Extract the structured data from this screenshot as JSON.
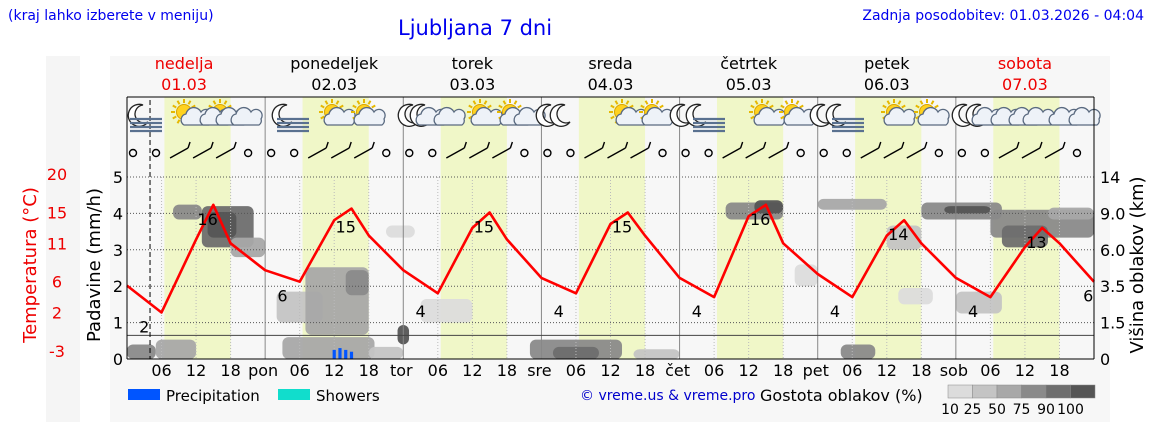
{
  "header": {
    "hint": "(kraj lahko izberete v meniju)",
    "title": "Ljubljana 7 dni",
    "updated": "Zadnja posodobitev: 01.03.2026 - 04:04",
    "credit": "© vreme.us & vreme.pro"
  },
  "days": [
    {
      "name": "nedelja",
      "date": "01.03",
      "weekend": true
    },
    {
      "name": "ponedeljek",
      "date": "02.03",
      "weekend": false
    },
    {
      "name": "torek",
      "date": "03.03",
      "weekend": false
    },
    {
      "name": "sreda",
      "date": "04.03",
      "weekend": false
    },
    {
      "name": "četrtek",
      "date": "05.03",
      "weekend": false
    },
    {
      "name": "petek",
      "date": "06.03",
      "weekend": false
    },
    {
      "name": "sobota",
      "date": "07.03",
      "weekend": true
    }
  ],
  "chart_data": {
    "type": "line",
    "start_time": "01.03 00:00",
    "hour_ticks": [
      "06",
      "12",
      "18"
    ],
    "day_ticks": [
      "pon",
      "tor",
      "sre",
      "čet",
      "pet",
      "sob"
    ],
    "temperature": {
      "axis_label": "Temperatura (°C)",
      "ticks": [
        20,
        15,
        11,
        6,
        2,
        -3
      ],
      "color": "#ff0000",
      "hours": [
        0,
        6,
        12,
        15,
        18,
        24,
        30,
        36,
        39,
        42,
        48,
        54,
        60,
        63,
        66,
        72,
        78,
        84,
        87,
        90,
        96,
        102,
        108,
        111,
        114,
        120,
        126,
        132,
        135,
        138,
        144,
        150,
        156,
        159,
        162,
        168
      ],
      "values": [
        5.5,
        2.0,
        11.5,
        16.0,
        11.0,
        7.5,
        6.0,
        14.0,
        15.5,
        12.0,
        7.5,
        4.5,
        13.0,
        15.0,
        11.5,
        6.5,
        4.5,
        13.5,
        15.0,
        12.0,
        6.5,
        4.0,
        14.5,
        16.0,
        11.0,
        7.0,
        4.0,
        12.0,
        14.0,
        11.0,
        6.5,
        4.0,
        10.5,
        13.0,
        11.0,
        6.0
      ],
      "labels": [
        {
          "hour": 3,
          "value": "2"
        },
        {
          "hour": 14,
          "value": "16"
        },
        {
          "hour": 27,
          "value": "6"
        },
        {
          "hour": 38,
          "value": "15"
        },
        {
          "hour": 51,
          "value": "4"
        },
        {
          "hour": 62,
          "value": "15"
        },
        {
          "hour": 75,
          "value": "4"
        },
        {
          "hour": 86,
          "value": "15"
        },
        {
          "hour": 99,
          "value": "4"
        },
        {
          "hour": 110,
          "value": "16"
        },
        {
          "hour": 123,
          "value": "4"
        },
        {
          "hour": 134,
          "value": "14"
        },
        {
          "hour": 147,
          "value": "4"
        },
        {
          "hour": 158,
          "value": "13"
        },
        {
          "hour": 167,
          "value": "6"
        }
      ]
    },
    "precipitation": {
      "axis_label": "Padavine (mm/h)",
      "ticks": [
        0,
        1,
        2,
        3,
        4,
        5
      ],
      "events": [
        {
          "hour": 36,
          "value": 0.25,
          "kind": "Precipitation"
        },
        {
          "hour": 37,
          "value": 0.3,
          "kind": "Precipitation"
        },
        {
          "hour": 38,
          "value": 0.25,
          "kind": "Precipitation"
        },
        {
          "hour": 39,
          "value": 0.2,
          "kind": "Precipitation"
        }
      ]
    },
    "cloud_height": {
      "axis_label": "Višina oblakov (km)",
      "ticks": [
        0,
        1.5,
        3.5,
        6.0,
        9.0,
        14
      ]
    },
    "cloud_density": {
      "title": "Gostota oblakov (%)",
      "scale": [
        "10",
        "25",
        "50",
        "75",
        "90",
        "100"
      ],
      "colors": [
        "#dcdcdc",
        "#c4c4c4",
        "#a8a8a8",
        "#8a8a8a",
        "#6e6e6e",
        "#555555"
      ],
      "patches": [
        {
          "h0": 0,
          "h1": 5,
          "km0": 0,
          "km1": 0.6,
          "d": 3
        },
        {
          "h0": 5,
          "h1": 12,
          "km0": 0,
          "km1": 0.8,
          "d": 2
        },
        {
          "h0": 8,
          "h1": 13,
          "km0": 8.5,
          "km1": 10.2,
          "d": 3
        },
        {
          "h0": 13,
          "h1": 22,
          "km0": 6.2,
          "km1": 10.0,
          "d": 4
        },
        {
          "h0": 14,
          "h1": 19,
          "km0": 7.0,
          "km1": 9.2,
          "d": 5
        },
        {
          "h0": 18,
          "h1": 24,
          "km0": 5.5,
          "km1": 7.0,
          "d": 2
        },
        {
          "h0": 26,
          "h1": 34,
          "km0": 1.5,
          "km1": 3.2,
          "d": 1
        },
        {
          "h0": 31,
          "h1": 42,
          "km0": 1.0,
          "km1": 4.8,
          "d": 2
        },
        {
          "h0": 38,
          "h1": 42,
          "km0": 3.0,
          "km1": 4.6,
          "d": 3
        },
        {
          "h0": 27,
          "h1": 43,
          "km0": 0,
          "km1": 0.9,
          "d": 2
        },
        {
          "h0": 42,
          "h1": 48,
          "km0": 0,
          "km1": 0.5,
          "d": 1
        },
        {
          "h0": 47,
          "h1": 49,
          "km0": 0.6,
          "km1": 1.4,
          "d": 5
        },
        {
          "h0": 51,
          "h1": 60,
          "km0": 1.5,
          "km1": 2.8,
          "d": 0
        },
        {
          "h0": 45,
          "h1": 50,
          "km0": 7.0,
          "km1": 8.0,
          "d": 0
        },
        {
          "h0": 70,
          "h1": 86,
          "km0": 0,
          "km1": 0.8,
          "d": 3
        },
        {
          "h0": 74,
          "h1": 82,
          "km0": 0,
          "km1": 0.5,
          "d": 4
        },
        {
          "h0": 88,
          "h1": 96,
          "km0": 0,
          "km1": 0.4,
          "d": 1
        },
        {
          "h0": 104,
          "h1": 114,
          "km0": 8.5,
          "km1": 10.5,
          "d": 3
        },
        {
          "h0": 109,
          "h1": 114,
          "km0": 9.0,
          "km1": 10.8,
          "d": 5
        },
        {
          "h0": 116,
          "h1": 120,
          "km0": 3.5,
          "km1": 5.0,
          "d": 0
        },
        {
          "h0": 120,
          "h1": 132,
          "km0": 9.5,
          "km1": 11.0,
          "d": 2
        },
        {
          "h0": 124,
          "h1": 130,
          "km0": 0,
          "km1": 0.6,
          "d": 3
        },
        {
          "h0": 132,
          "h1": 138,
          "km0": 6.0,
          "km1": 8.0,
          "d": 1
        },
        {
          "h0": 134,
          "h1": 140,
          "km0": 2.5,
          "km1": 3.4,
          "d": 0
        },
        {
          "h0": 138,
          "h1": 152,
          "km0": 8.5,
          "km1": 10.5,
          "d": 3
        },
        {
          "h0": 142,
          "h1": 150,
          "km0": 9.0,
          "km1": 10.0,
          "d": 5
        },
        {
          "h0": 144,
          "h1": 152,
          "km0": 2.0,
          "km1": 3.2,
          "d": 1
        },
        {
          "h0": 150,
          "h1": 168,
          "km0": 7.0,
          "km1": 9.5,
          "d": 3
        },
        {
          "h0": 152,
          "h1": 160,
          "km0": 6.2,
          "km1": 8.0,
          "d": 4
        },
        {
          "h0": 160,
          "h1": 168,
          "km0": 8.5,
          "km1": 9.8,
          "d": 2
        }
      ]
    },
    "legend": [
      {
        "label": "Precipitation",
        "color": "#0055ff"
      },
      {
        "label": "Showers",
        "color": "#11ddcc"
      }
    ]
  },
  "icons": [
    "moon-clear-icon",
    "fog-icon",
    "sun-icon",
    "partly-cloudy-icon",
    "cloudy-icon"
  ]
}
